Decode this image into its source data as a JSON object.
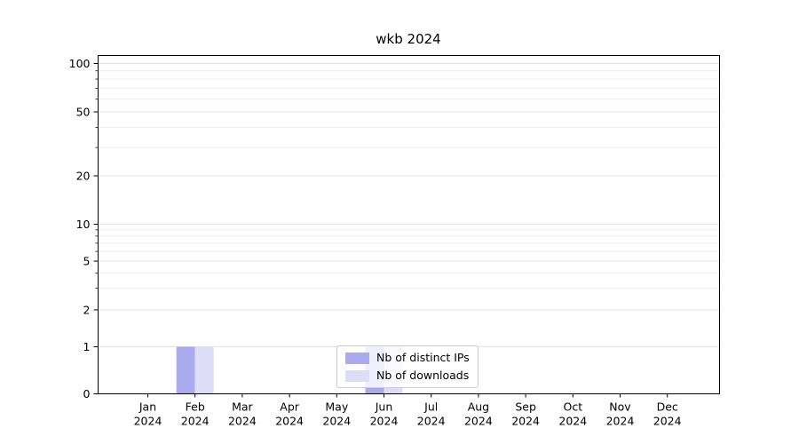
{
  "chart_data": {
    "type": "bar",
    "title": "wkb 2024",
    "categories": [
      "Jan 2024",
      "Feb 2024",
      "Mar 2024",
      "Apr 2024",
      "May 2024",
      "Jun 2024",
      "Jul 2024",
      "Aug 2024",
      "Sep 2024",
      "Oct 2024",
      "Nov 2024",
      "Dec 2024"
    ],
    "series": [
      {
        "name": "Nb of distinct IPs",
        "color": "#aaaaee",
        "values": [
          0,
          1,
          0,
          0,
          0,
          1,
          0,
          0,
          0,
          0,
          0,
          0
        ]
      },
      {
        "name": "Nb of downloads",
        "color": "#ddddf8",
        "values": [
          0,
          1,
          0,
          0,
          0,
          1,
          0,
          0,
          0,
          0,
          0,
          0
        ]
      }
    ],
    "y_ticks": [
      0,
      1,
      2,
      5,
      10,
      20,
      50,
      100
    ],
    "y_scale": "symlog",
    "ylim": [
      0,
      100
    ],
    "grid": true,
    "legend_position": "lower center"
  }
}
